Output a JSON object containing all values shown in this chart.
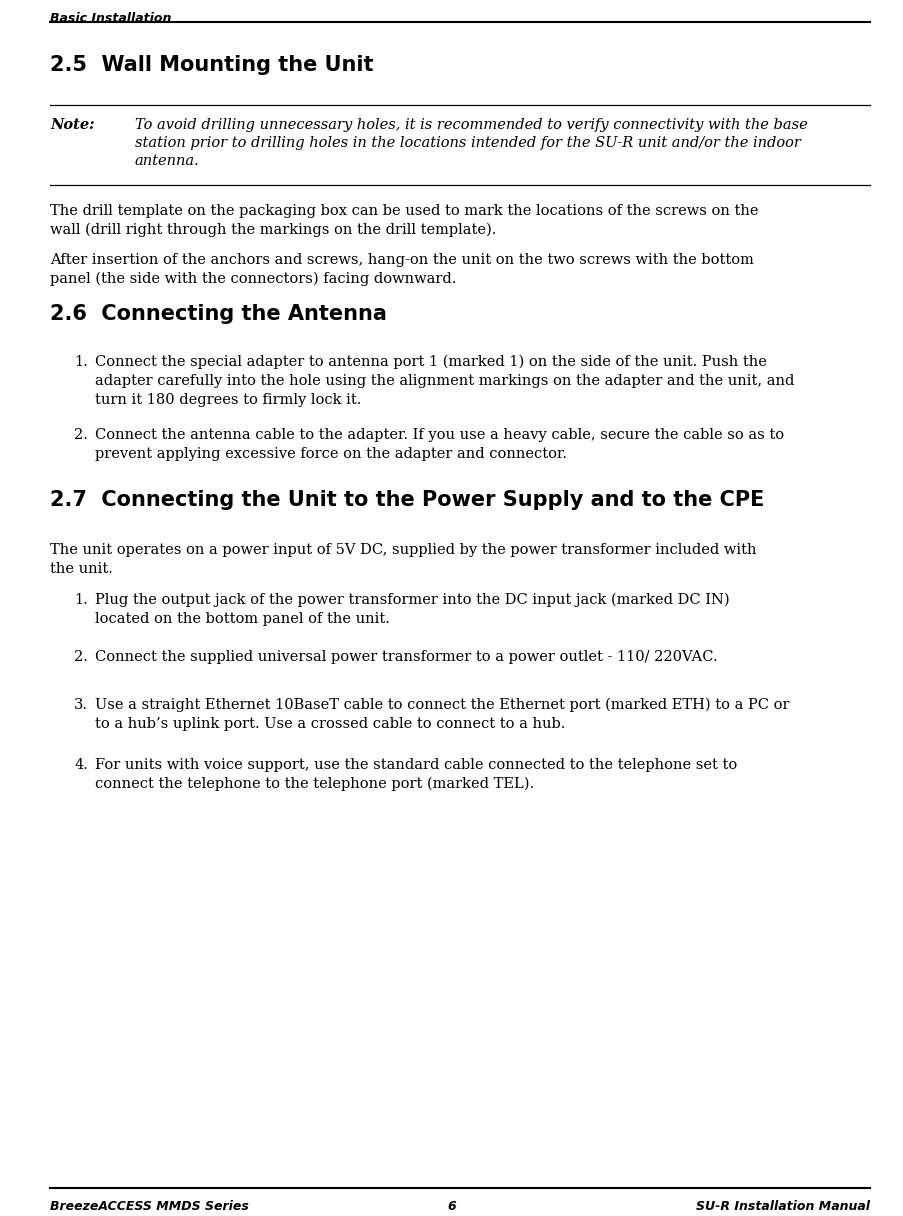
{
  "header_text": "Basic Installation",
  "footer_left": "BreezeACCESS MMDS Series",
  "footer_center": "6",
  "footer_right": "SU-R Installation Manual",
  "section_25_title": "2.5  Wall Mounting the Unit",
  "note_label": "Note:",
  "note_line1": "To avoid drilling unnecessary holes, it is recommended to verify connectivity with the base",
  "note_line2": "station prior to drilling holes in the locations intended for the SU-R unit and/or the indoor",
  "note_line3": "antenna.",
  "para_1_line1": "The drill template on the packaging box can be used to mark the locations of the screws on the",
  "para_1_line2": "wall (drill right through the markings on the drill template).",
  "para_2_line1": "After insertion of the anchors and screws, hang-on the unit on the two screws with the bottom",
  "para_2_line2": "panel (the side with the connectors) facing downward.",
  "section_26_title": "2.6  Connecting the Antenna",
  "item_1_line1": "Connect the special adapter to antenna port 1 (marked 1) on the side of the unit. Push the",
  "item_1_line2": "adapter carefully into the hole using the alignment markings on the adapter and the unit, and",
  "item_1_line3": "turn it 180 degrees to firmly lock it.",
  "item_2_line1": "Connect the antenna cable to the adapter. If you use a heavy cable, secure the cable so as to",
  "item_2_line2": "prevent applying excessive force on the adapter and connector.",
  "section_27_title": "2.7  Connecting the Unit to the Power Supply and to the CPE",
  "para_27_intro_line1": "The unit operates on a power input of 5V DC, supplied by the power transformer included with",
  "para_27_intro_line2": "the unit.",
  "item_27_1_line1": "Plug the output jack of the power transformer into the DC input jack (marked DC IN)",
  "item_27_1_line2": "located on the bottom panel of the unit.",
  "item_27_2": "Connect the supplied universal power transformer to a power outlet - 110/ 220VAC.",
  "item_27_3_line1": "Use a straight Ethernet 10BaseT cable to connect the Ethernet port (marked ETH) to a PC or",
  "item_27_3_line2": "to a hub’s uplink port. Use a crossed cable to connect to a hub.",
  "item_27_4_line1": "For units with voice support, use the standard cable connected to the telephone set to",
  "item_27_4_line2": "connect the telephone to the telephone port (marked TEL).",
  "bg_color": "#ffffff",
  "text_color": "#000000",
  "line_color": "#000000",
  "body_font": "serif",
  "header_font": "sans-serif",
  "section_font": "sans-serif",
  "header_fs": 9.0,
  "section_fs": 15.0,
  "body_fs": 10.5,
  "note_fs": 10.5,
  "footer_fs": 9.0
}
